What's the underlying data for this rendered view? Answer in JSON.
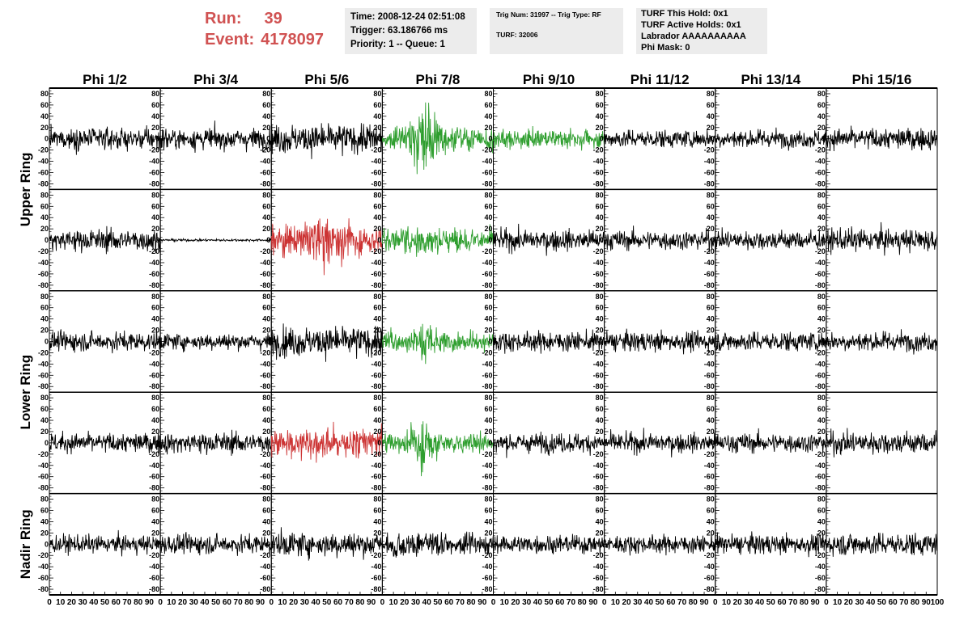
{
  "header": {
    "run_label": "Run:",
    "run_value": "39",
    "event_label": "Event:",
    "event_value": "4178097"
  },
  "info_box_1": {
    "time": "Time: 2008-12-24 02:51:08",
    "trigger": "Trigger: 63.186766 ms",
    "priority": "Priority: 1 -- Queue: 1"
  },
  "info_box_2": {
    "trig": "Trig Num: 31997 -- Trig Type: RF",
    "turf": "TURF: 32006"
  },
  "info_box_3": {
    "hold": "TURF This Hold: 0x1",
    "active_holds": "TURF Active Holds: 0x1",
    "labrador": "Labrador AAAAAAAAAA",
    "phi_mask": "Phi Mask: 0"
  },
  "colors": {
    "normal": "#000000",
    "triggered": "#cc3333",
    "neighbor": "#2e9e2e",
    "text_accent": "#d05252",
    "box_bg": "#ececec"
  },
  "chart_data": {
    "type": "line",
    "columns": [
      "Phi 1/2",
      "Phi 3/4",
      "Phi 5/6",
      "Phi 7/8",
      "Phi 9/10",
      "Phi 11/12",
      "Phi 13/14",
      "Phi 15/16"
    ],
    "rows": [
      "Upper Ring",
      "",
      "Lower Ring",
      "",
      "Nadir Ring"
    ],
    "ylim": [
      -90,
      90
    ],
    "y_ticks": [
      -80,
      -60,
      -40,
      -20,
      0,
      20,
      40,
      60,
      80
    ],
    "xlim": [
      0,
      100
    ],
    "x_ticks": [
      0,
      10,
      20,
      30,
      40,
      50,
      60,
      70,
      80,
      90,
      100
    ],
    "x_tick_labels": [
      "0",
      "10",
      "20",
      "30",
      "40",
      "50",
      "60",
      "70",
      "80",
      "90",
      "100"
    ],
    "samples_per_trace": 260,
    "panels": [
      {
        "row": 0,
        "col": 0,
        "color": "normal",
        "amp": 13,
        "burst": 0
      },
      {
        "row": 0,
        "col": 1,
        "color": "normal",
        "amp": 13,
        "burst": 0
      },
      {
        "row": 0,
        "col": 2,
        "color": "normal",
        "amp": 18,
        "burst": 0
      },
      {
        "row": 0,
        "col": 3,
        "color": "neighbor",
        "amp": 14,
        "burst": 48
      },
      {
        "row": 0,
        "col": 4,
        "color": "neighbor",
        "amp": 11,
        "burst": 6
      },
      {
        "row": 0,
        "col": 5,
        "color": "normal",
        "amp": 11,
        "burst": 0
      },
      {
        "row": 0,
        "col": 6,
        "color": "normal",
        "amp": 11,
        "burst": 0
      },
      {
        "row": 0,
        "col": 7,
        "color": "normal",
        "amp": 13,
        "burst": 0
      },
      {
        "row": 1,
        "col": 0,
        "color": "normal",
        "amp": 14,
        "burst": 0
      },
      {
        "row": 1,
        "col": 1,
        "color": "normal",
        "amp": 1.5,
        "burst": 0
      },
      {
        "row": 1,
        "col": 2,
        "color": "triggered",
        "amp": 18,
        "burst": 24
      },
      {
        "row": 1,
        "col": 3,
        "color": "neighbor",
        "amp": 14,
        "burst": 16
      },
      {
        "row": 1,
        "col": 4,
        "color": "normal",
        "amp": 13,
        "burst": 0
      },
      {
        "row": 1,
        "col": 5,
        "color": "normal",
        "amp": 12,
        "burst": 0
      },
      {
        "row": 1,
        "col": 6,
        "color": "normal",
        "amp": 12,
        "burst": 0
      },
      {
        "row": 1,
        "col": 7,
        "color": "normal",
        "amp": 14,
        "burst": 0
      },
      {
        "row": 2,
        "col": 0,
        "color": "normal",
        "amp": 12,
        "burst": 0
      },
      {
        "row": 2,
        "col": 1,
        "color": "normal",
        "amp": 10,
        "burst": 0
      },
      {
        "row": 2,
        "col": 2,
        "color": "normal",
        "amp": 18,
        "burst": 0
      },
      {
        "row": 2,
        "col": 3,
        "color": "neighbor",
        "amp": 13,
        "burst": 22
      },
      {
        "row": 2,
        "col": 4,
        "color": "normal",
        "amp": 12,
        "burst": 0
      },
      {
        "row": 2,
        "col": 5,
        "color": "normal",
        "amp": 12,
        "burst": 0
      },
      {
        "row": 2,
        "col": 6,
        "color": "normal",
        "amp": 12,
        "burst": 0
      },
      {
        "row": 2,
        "col": 7,
        "color": "normal",
        "amp": 12,
        "burst": 0
      },
      {
        "row": 3,
        "col": 0,
        "color": "normal",
        "amp": 12,
        "burst": 0
      },
      {
        "row": 3,
        "col": 1,
        "color": "normal",
        "amp": 13,
        "burst": 0
      },
      {
        "row": 3,
        "col": 2,
        "color": "triggered",
        "amp": 18,
        "burst": 12
      },
      {
        "row": 3,
        "col": 3,
        "color": "neighbor",
        "amp": 12,
        "burst": 30
      },
      {
        "row": 3,
        "col": 4,
        "color": "normal",
        "amp": 12,
        "burst": 0
      },
      {
        "row": 3,
        "col": 5,
        "color": "normal",
        "amp": 12,
        "burst": 0
      },
      {
        "row": 3,
        "col": 6,
        "color": "normal",
        "amp": 12,
        "burst": 0
      },
      {
        "row": 3,
        "col": 7,
        "color": "normal",
        "amp": 14,
        "burst": 0
      },
      {
        "row": 4,
        "col": 0,
        "color": "normal",
        "amp": 11,
        "burst": 0
      },
      {
        "row": 4,
        "col": 1,
        "color": "normal",
        "amp": 12,
        "burst": 0
      },
      {
        "row": 4,
        "col": 2,
        "color": "normal",
        "amp": 15,
        "burst": 0
      },
      {
        "row": 4,
        "col": 3,
        "color": "normal",
        "amp": 14,
        "burst": 8
      },
      {
        "row": 4,
        "col": 4,
        "color": "normal",
        "amp": 11,
        "burst": 0
      },
      {
        "row": 4,
        "col": 5,
        "color": "normal",
        "amp": 11,
        "burst": 0
      },
      {
        "row": 4,
        "col": 6,
        "color": "normal",
        "amp": 12,
        "burst": 0
      },
      {
        "row": 4,
        "col": 7,
        "color": "normal",
        "amp": 14,
        "burst": 0
      }
    ]
  }
}
